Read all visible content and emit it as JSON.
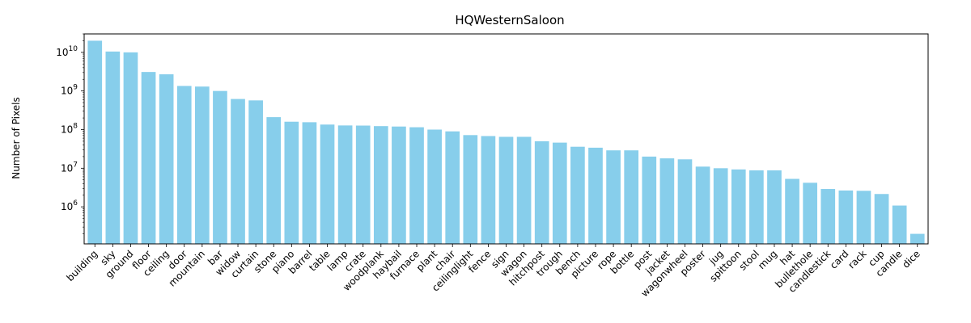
{
  "chart_data": {
    "type": "bar",
    "title": "HQWesternSaloon",
    "xlabel": "",
    "ylabel": "Number of Pixels",
    "yscale": "log",
    "ylim": [
      110000,
      30000000000
    ],
    "grid": false,
    "bar_color": "#87ceeb",
    "y_ticks": [
      {
        "value": 1000000,
        "base": "10",
        "exp": "6"
      },
      {
        "value": 10000000,
        "base": "10",
        "exp": "7"
      },
      {
        "value": 100000000,
        "base": "10",
        "exp": "8"
      },
      {
        "value": 1000000000,
        "base": "10",
        "exp": "9"
      },
      {
        "value": 10000000000,
        "base": "10",
        "exp": "10"
      }
    ],
    "categories": [
      "building",
      "sky",
      "ground",
      "floor",
      "ceiling",
      "door",
      "mountain",
      "bar",
      "widow",
      "curtain",
      "stone",
      "piano",
      "barrel",
      "table",
      "lamp",
      "crate",
      "woodplank",
      "haybail",
      "furnace",
      "plant",
      "chair",
      "ceilinglight",
      "fence",
      "sign",
      "wagon",
      "hitchpost",
      "trough",
      "bench",
      "picture",
      "rope",
      "bottle",
      "post",
      "jacket",
      "wagonwheel",
      "poster",
      "jug",
      "spittoon",
      "stool",
      "mug",
      "hat",
      "bullethole",
      "candlestick",
      "card",
      "rack",
      "cup",
      "candle",
      "dice"
    ],
    "values": [
      20000000000,
      10500000000,
      10000000000,
      3100000000,
      2700000000,
      1350000000,
      1300000000,
      1000000000,
      620000000,
      570000000,
      210000000,
      160000000,
      155000000,
      135000000,
      128000000,
      127000000,
      123000000,
      120000000,
      115000000,
      100000000,
      90000000,
      72000000,
      68000000,
      65000000,
      65000000,
      50000000,
      46000000,
      36000000,
      34000000,
      29000000,
      29000000,
      20000000,
      18000000,
      17000000,
      11000000,
      10000000,
      9300000,
      8800000,
      8800000,
      5300000,
      4200000,
      2900000,
      2650000,
      2600000,
      2150000,
      1080000,
      200000
    ]
  }
}
